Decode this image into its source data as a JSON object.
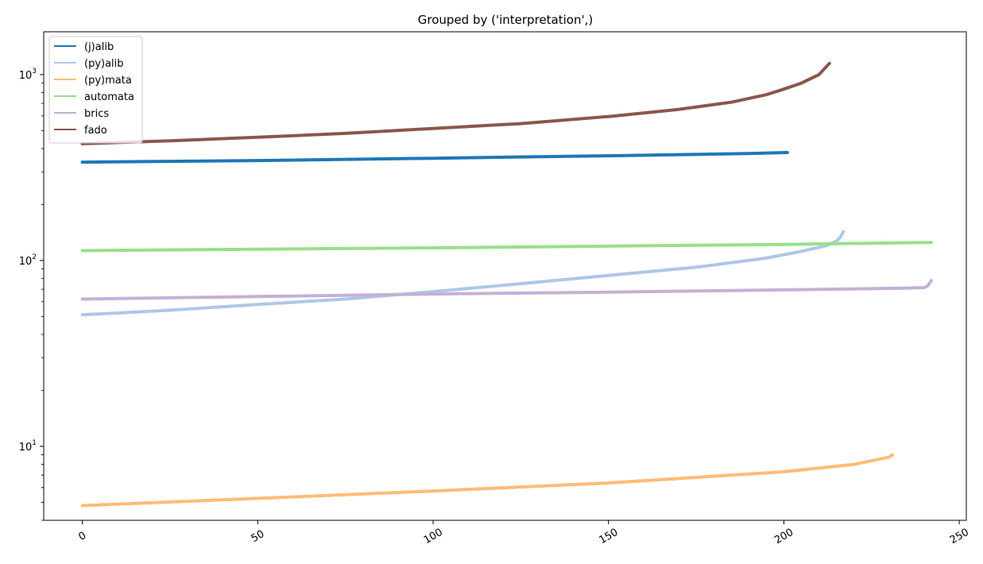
{
  "chart_data": {
    "type": "line",
    "title": "Grouped by ('interpretation',)",
    "xlabel": "",
    "ylabel": "",
    "xlim": [
      -11,
      252
    ],
    "ylim": [
      4,
      1700
    ],
    "yscale": "log",
    "x_ticks": [
      0,
      50,
      100,
      150,
      200,
      250
    ],
    "x_tick_labels": [
      "0",
      "50",
      "100",
      "150",
      "200",
      "250"
    ],
    "y_ticks": [
      10,
      100,
      1000
    ],
    "y_tick_labels": [
      {
        "base": "10",
        "exp": "1"
      },
      {
        "base": "10",
        "exp": "2"
      },
      {
        "base": "10",
        "exp": "3"
      }
    ],
    "grid": false,
    "legend_position": "upper-left",
    "series": [
      {
        "name": "(j)alib",
        "color": "#1f77b4",
        "points": [
          [
            0,
            338
          ],
          [
            50,
            345
          ],
          [
            100,
            355
          ],
          [
            150,
            366
          ],
          [
            190,
            376
          ],
          [
            201,
            381
          ]
        ]
      },
      {
        "name": "(py)alib",
        "color": "#aec7e8",
        "points": [
          [
            0,
            51
          ],
          [
            25,
            54
          ],
          [
            50,
            58
          ],
          [
            75,
            62
          ],
          [
            100,
            68
          ],
          [
            125,
            75
          ],
          [
            150,
            83
          ],
          [
            175,
            92
          ],
          [
            195,
            103
          ],
          [
            205,
            112
          ],
          [
            212,
            120
          ],
          [
            215,
            127
          ],
          [
            216,
            133
          ],
          [
            217,
            143
          ]
        ]
      },
      {
        "name": "(py)mata",
        "color": "#ffbb78",
        "points": [
          [
            0,
            4.8
          ],
          [
            50,
            5.25
          ],
          [
            100,
            5.75
          ],
          [
            150,
            6.35
          ],
          [
            200,
            7.3
          ],
          [
            220,
            8.0
          ],
          [
            228,
            8.6
          ],
          [
            230,
            8.75
          ],
          [
            231,
            9.0
          ]
        ]
      },
      {
        "name": "automata",
        "color": "#98df8a",
        "points": [
          [
            0,
            113
          ],
          [
            50,
            115
          ],
          [
            100,
            117
          ],
          [
            150,
            119.5
          ],
          [
            200,
            122
          ],
          [
            242,
            125
          ]
        ]
      },
      {
        "name": "brics",
        "color": "#c5b0d5",
        "points": [
          [
            0,
            62
          ],
          [
            50,
            64
          ],
          [
            100,
            66
          ],
          [
            150,
            67.5
          ],
          [
            200,
            69.5
          ],
          [
            235,
            71
          ],
          [
            240,
            71.5
          ],
          [
            241,
            73
          ],
          [
            242,
            78
          ]
        ]
      },
      {
        "name": "fado",
        "color": "#8c564b",
        "points": [
          [
            0,
            425
          ],
          [
            25,
            440
          ],
          [
            50,
            460
          ],
          [
            75,
            483
          ],
          [
            100,
            513
          ],
          [
            125,
            545
          ],
          [
            150,
            595
          ],
          [
            170,
            650
          ],
          [
            185,
            710
          ],
          [
            195,
            780
          ],
          [
            200,
            835
          ],
          [
            205,
            900
          ],
          [
            210,
            1000
          ],
          [
            213,
            1150
          ]
        ]
      }
    ]
  }
}
